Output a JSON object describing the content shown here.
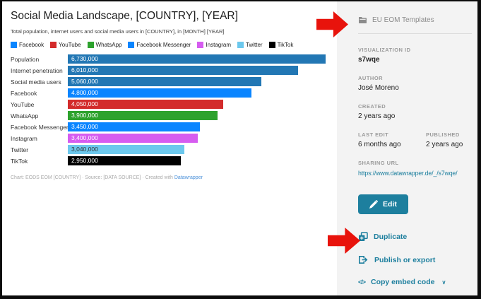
{
  "chart": {
    "title": "Social Media Landscape, [COUNTRY], [YEAR]",
    "subtitle": "Total population, internet users and social media users in [COUNTRY], in [MONTH] [YEAR]",
    "footer_prefix": "Chart: EODS EOM [COUNTRY] · Source: [DATA SOURCE] · Created with ",
    "footer_link": "Datawrapper"
  },
  "chart_data": {
    "type": "bar",
    "orientation": "horizontal",
    "title": "Social Media Landscape, [COUNTRY], [YEAR]",
    "subtitle": "Total population, internet users and social media users in [COUNTRY], in [MONTH] [YEAR]",
    "categories": [
      "Population",
      "Internet penetration",
      "Social media users",
      "Facebook",
      "YouTube",
      "WhatsApp",
      "Facebook Messenger",
      "Instagram",
      "Twitter",
      "TikTok"
    ],
    "values": [
      6730000,
      6010000,
      5060000,
      4800000,
      4050000,
      3900000,
      3450000,
      3400000,
      3040000,
      2950000
    ],
    "value_labels": [
      "6,730,000",
      "6,010,000",
      "5,060,000",
      "4,800,000",
      "4,050,000",
      "3,900,000",
      "3,450,000",
      "3,400,000",
      "3,040,000",
      "2,950,000"
    ],
    "bar_colors": [
      "#2277b4",
      "#2277b4",
      "#2277b4",
      "#0a85ff",
      "#d32b2b",
      "#2da22d",
      "#0a85ff",
      "#d65cf0",
      "#6cc8ed",
      "#000000"
    ],
    "value_label_colors": [
      "#ffffff",
      "#ffffff",
      "#ffffff",
      "#ffffff",
      "#ffffff",
      "#ffffff",
      "#ffffff",
      "#ffffff",
      "#333333",
      "#ffffff"
    ],
    "legend": [
      {
        "label": "Facebook",
        "color": "#0a85ff"
      },
      {
        "label": "YouTube",
        "color": "#d32b2b"
      },
      {
        "label": "WhatsApp",
        "color": "#2da22d"
      },
      {
        "label": "Facebook Messenger",
        "color": "#0a85ff"
      },
      {
        "label": "Instagram",
        "color": "#d65cf0"
      },
      {
        "label": "Twitter",
        "color": "#6cc8ed"
      },
      {
        "label": "TikTok",
        "color": "#000000"
      }
    ],
    "xlim": [
      0,
      6730000
    ],
    "grid": false,
    "legend_position": "top"
  },
  "sidebar": {
    "templates_label": "EU EOM Templates",
    "viz_id_label": "VISUALIZATION ID",
    "viz_id": "s7wqe",
    "author_label": "AUTHOR",
    "author": "José Moreno",
    "created_label": "CREATED",
    "created": "2 years ago",
    "last_edit_label": "LAST EDIT",
    "last_edit": "6 months ago",
    "published_label": "PUBLISHED",
    "published": "2 years ago",
    "sharing_label": "SHARING URL",
    "sharing_url": "https://www.datawrapper.de/_/s7wqe/",
    "edit_button": "Edit",
    "duplicate_label": "Duplicate",
    "publish_label": "Publish or export",
    "embed_label": "Copy embed code",
    "embed_icon": "</>",
    "embed_chevron": "∨"
  },
  "colors": {
    "accent_teal": "#1d7f9e",
    "arrow_red": "#e8130c",
    "sidebar_bg": "#f3f3f3",
    "footer_link_blue": "#4a90d9"
  }
}
